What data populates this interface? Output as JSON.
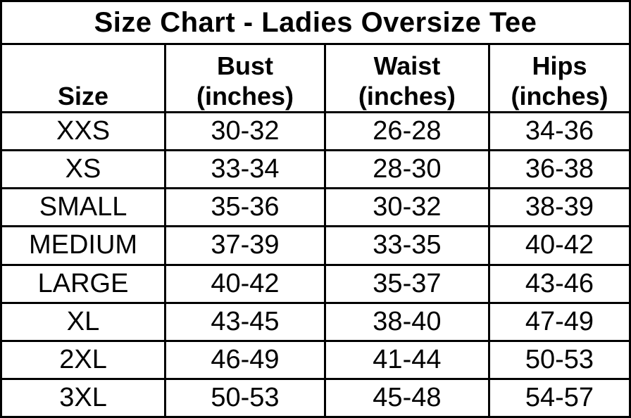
{
  "title": "Size Chart - Ladies Oversize Tee",
  "header": {
    "size_label": "Size",
    "bust_label": "Bust",
    "bust_unit": "(inches)",
    "waist_label": "Waist",
    "waist_unit": "(inches)",
    "hips_label": "Hips",
    "hips_unit": "(inches)"
  },
  "chart_data": {
    "type": "table",
    "title": "Size Chart - Ladies Oversize Tee",
    "columns": [
      "Size",
      "Bust (inches)",
      "Waist (inches)",
      "Hips (inches)"
    ],
    "rows": [
      [
        "XXS",
        "30-32",
        "26-28",
        "34-36"
      ],
      [
        "XS",
        "33-34",
        "28-30",
        "36-38"
      ],
      [
        "SMALL",
        "35-36",
        "30-32",
        "38-39"
      ],
      [
        "MEDIUM",
        "37-39",
        "33-35",
        "40-42"
      ],
      [
        "LARGE",
        "40-42",
        "35-37",
        "43-46"
      ],
      [
        "XL",
        "43-45",
        "38-40",
        "47-49"
      ],
      [
        "2XL",
        "46-49",
        "41-44",
        "50-53"
      ],
      [
        "3XL",
        "50-53",
        "45-48",
        "54-57"
      ]
    ],
    "layout": {
      "grid": true,
      "border_color": "#000000",
      "title_row": true
    }
  },
  "colors": {
    "background": "#ffffff",
    "text": "#000000",
    "border": "#000000"
  }
}
